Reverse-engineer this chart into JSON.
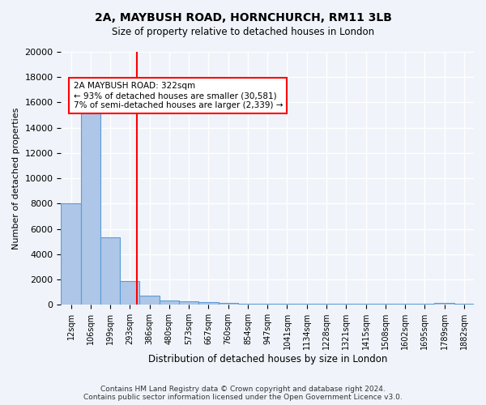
{
  "title1": "2A, MAYBUSH ROAD, HORNCHURCH, RM11 3LB",
  "title2": "Size of property relative to detached houses in London",
  "xlabel": "Distribution of detached houses by size in London",
  "ylabel": "Number of detached properties",
  "bins": [
    "12sqm",
    "106sqm",
    "199sqm",
    "293sqm",
    "386sqm",
    "480sqm",
    "573sqm",
    "667sqm",
    "760sqm",
    "854sqm",
    "947sqm",
    "1041sqm",
    "1134sqm",
    "1228sqm",
    "1321sqm",
    "1415sqm",
    "1508sqm",
    "1602sqm",
    "1695sqm",
    "1789sqm",
    "1882sqm"
  ],
  "values": [
    8050,
    16600,
    5300,
    1900,
    700,
    350,
    290,
    200,
    130,
    110,
    90,
    75,
    60,
    55,
    55,
    50,
    50,
    50,
    100,
    150,
    80
  ],
  "bar_color": "#aec6e8",
  "bar_edge_color": "#5b9bd5",
  "property_line_x": 3.35,
  "property_line_color": "red",
  "annotation_title": "2A MAYBUSH ROAD: 322sqm",
  "annotation_line1": "← 93% of detached houses are smaller (30,581)",
  "annotation_line2": "7% of semi-detached houses are larger (2,339) →",
  "annotation_box_color": "white",
  "annotation_box_edgecolor": "red",
  "ylim": [
    0,
    20000
  ],
  "yticks": [
    0,
    2000,
    4000,
    6000,
    8000,
    10000,
    12000,
    14000,
    16000,
    18000,
    20000
  ],
  "footer1": "Contains HM Land Registry data © Crown copyright and database right 2024.",
  "footer2": "Contains public sector information licensed under the Open Government Licence v3.0.",
  "background_color": "#f0f4fa",
  "grid_color": "white"
}
